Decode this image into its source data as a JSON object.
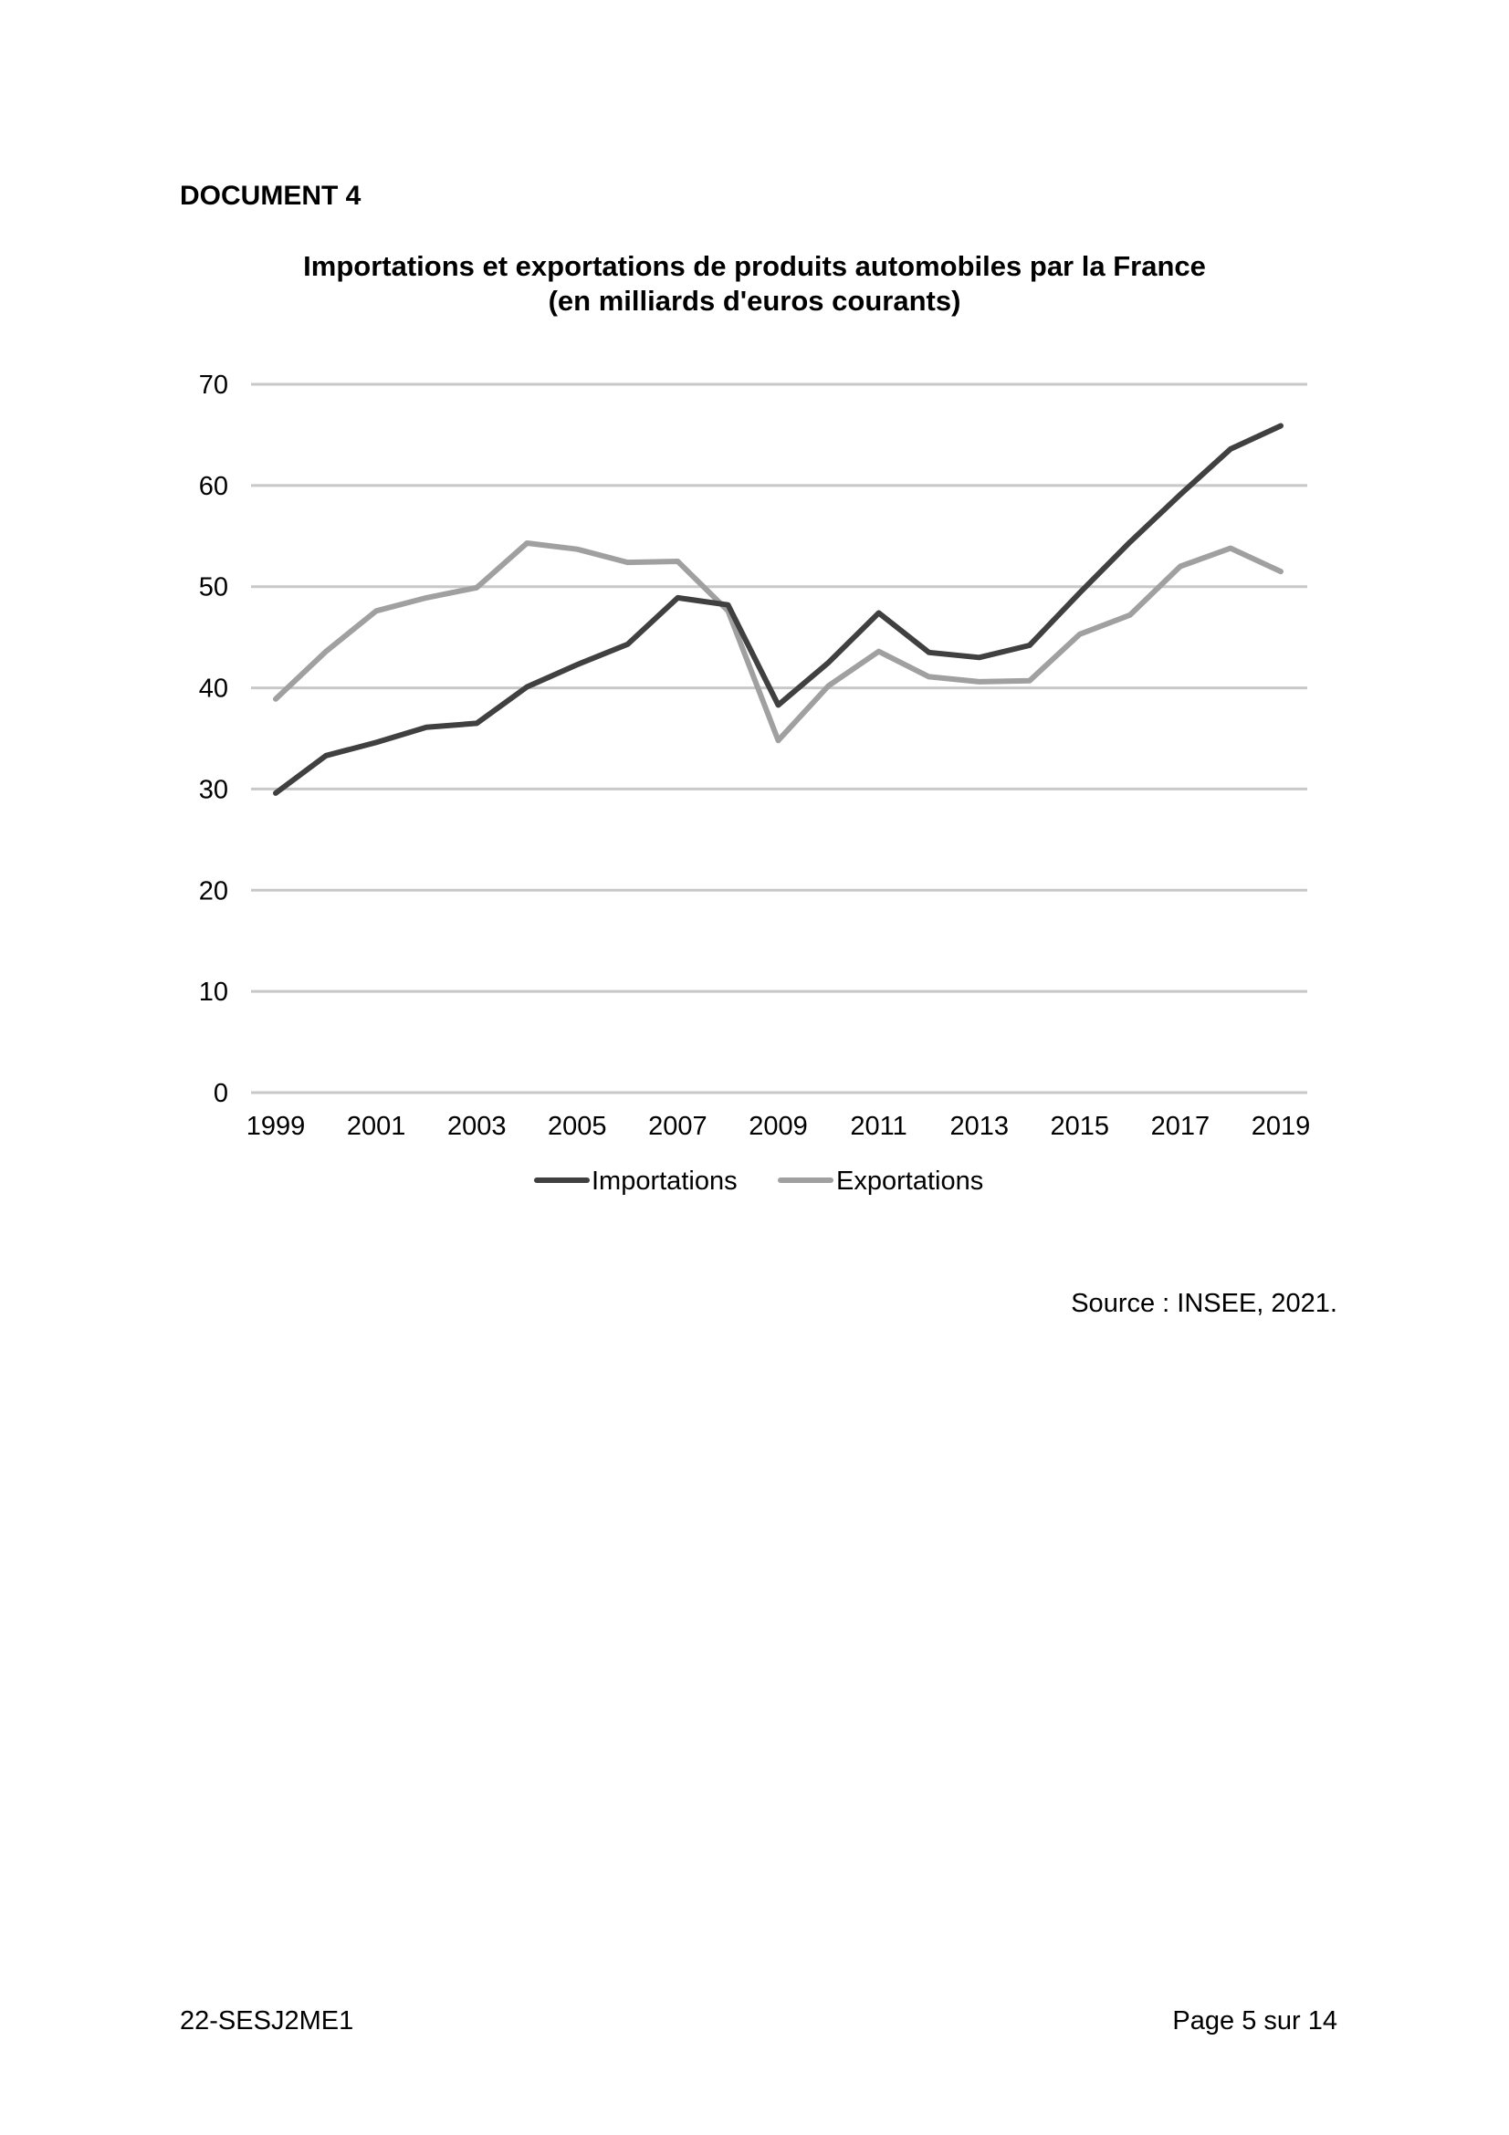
{
  "document_label": "DOCUMENT 4",
  "chart_data": {
    "type": "line",
    "title": "Importations et exportations de produits automobiles par la France",
    "subtitle": "(en milliards d'euros courants)",
    "x": [
      1999,
      2000,
      2001,
      2002,
      2003,
      2004,
      2005,
      2006,
      2007,
      2008,
      2009,
      2010,
      2011,
      2012,
      2013,
      2014,
      2015,
      2016,
      2017,
      2018,
      2019
    ],
    "x_tick_labels": [
      "1999",
      "2001",
      "2003",
      "2005",
      "2007",
      "2009",
      "2011",
      "2013",
      "2015",
      "2017",
      "2019"
    ],
    "y_tick_labels": [
      "0",
      "10",
      "20",
      "30",
      "40",
      "50",
      "60",
      "70"
    ],
    "ylim": [
      0,
      70
    ],
    "grid": true,
    "legend_position": "bottom",
    "series": [
      {
        "name": "Importations",
        "color": "#404040",
        "values": [
          29.6,
          33.3,
          34.6,
          36.1,
          36.5,
          40.1,
          42.3,
          44.3,
          48.9,
          48.2,
          38.3,
          42.5,
          47.4,
          43.5,
          43.0,
          44.2,
          49.4,
          54.4,
          59.1,
          63.6,
          65.9
        ]
      },
      {
        "name": "Exportations",
        "color": "#a0a0a0",
        "values": [
          38.9,
          43.6,
          47.6,
          48.9,
          49.9,
          54.3,
          53.7,
          52.4,
          52.5,
          47.6,
          34.8,
          40.2,
          43.6,
          41.1,
          40.6,
          40.7,
          45.3,
          47.2,
          52.0,
          53.8,
          51.5
        ]
      }
    ]
  },
  "source": "Source : INSEE, 2021.",
  "footer": {
    "code": "22-SESJ2ME1",
    "page": "Page 5 sur 14"
  }
}
